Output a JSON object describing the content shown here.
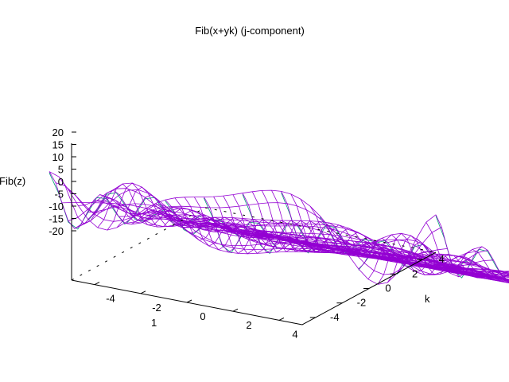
{
  "chart_data": {
    "type": "surface",
    "title": "Fib(x+yk) (j-component)",
    "xlabel": "1",
    "ylabel": "k",
    "zlabel": "Fib(z)",
    "x_ticks": [
      "-4",
      "-2",
      "0",
      "2",
      "4"
    ],
    "y_ticks": [
      "-4",
      "-2",
      "0",
      "2",
      "4"
    ],
    "z_ticks": [
      "20",
      "15",
      "10",
      "5",
      "0",
      "-5",
      "-10",
      "-15",
      "-20"
    ],
    "x_range": [
      -5,
      5
    ],
    "y_range": [
      -5,
      5
    ],
    "z_range": [
      -20,
      20
    ],
    "grid": false,
    "legend": "none",
    "colors": {
      "top": "#9400d3",
      "bottom": "#009e73",
      "axes": "#000000"
    },
    "sampled_surface_z_values": {
      "x": [
        -5,
        -4,
        -3,
        -2,
        -1,
        0,
        1,
        2,
        3,
        4,
        5
      ],
      "y": [
        -5,
        -4,
        -3,
        -2,
        -1,
        0,
        1,
        2,
        3,
        4,
        5
      ],
      "z": [
        [
          6,
          1,
          3,
          1,
          1,
          1,
          1,
          0,
          0,
          0,
          0
        ],
        [
          10,
          -2,
          4,
          -1,
          2,
          0,
          1,
          0,
          0,
          0,
          0
        ],
        [
          13,
          -5,
          7,
          -2,
          4,
          0,
          2,
          0,
          0,
          0,
          0
        ],
        [
          15,
          -7,
          9,
          -3,
          6,
          -1,
          2,
          0,
          0,
          0,
          0
        ],
        [
          16,
          -8,
          10,
          -3,
          8,
          -1,
          3,
          0,
          0,
          0,
          0
        ],
        [
          14,
          -8,
          9,
          -2,
          10,
          3,
          3,
          0,
          0,
          0,
          0
        ],
        [
          16,
          -8,
          10,
          -3,
          8,
          -1,
          3,
          0,
          0,
          0,
          0
        ],
        [
          15,
          -7,
          9,
          -3,
          6,
          -1,
          2,
          0,
          0,
          0,
          0
        ],
        [
          13,
          -5,
          7,
          -2,
          4,
          0,
          2,
          0,
          0,
          0,
          0
        ],
        [
          10,
          -2,
          4,
          -1,
          2,
          0,
          1,
          0,
          0,
          0,
          0
        ],
        [
          6,
          1,
          3,
          1,
          1,
          1,
          1,
          0,
          0,
          0,
          0
        ]
      ]
    }
  }
}
